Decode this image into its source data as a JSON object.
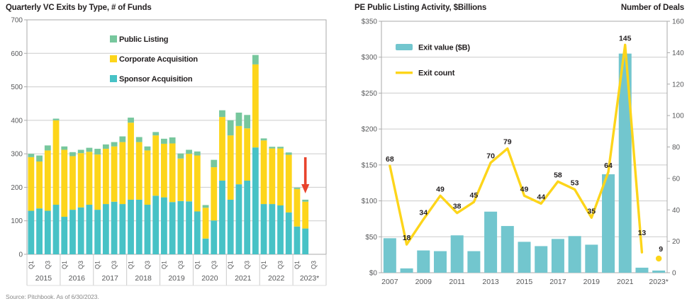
{
  "source": "Source: Pitchbook. As of 6/30/2023.",
  "colors": {
    "sponsor_teal": "#47c2c6",
    "corporate_yellow": "#fdd51a",
    "public_green": "#77c79d",
    "exit_value_teal": "#72c6ce",
    "exit_count_yellow": "#fdd51a",
    "arrow_red": "#e8432c",
    "grid": "#cccccc",
    "frame": "#aaaaaa",
    "axis_text": "#58595b",
    "label_text": "#231f20"
  },
  "chart_data": [
    {
      "type": "bar",
      "stacked": true,
      "title": "Quarterly VC Exits by Type, # of Funds",
      "ylim": [
        0,
        700
      ],
      "ytick_step": 100,
      "grid": true,
      "legend_position": "inside-top-left",
      "years": [
        "2015",
        "2016",
        "2017",
        "2018",
        "2019",
        "2020",
        "2021",
        "2022",
        "2023*"
      ],
      "quarters_per_year": [
        4,
        4,
        4,
        4,
        4,
        4,
        4,
        4,
        2
      ],
      "quarter_tick_labels": [
        "Q1",
        "Q3"
      ],
      "series": [
        {
          "name": "Sponsor Acquisition",
          "color_key": "sponsor_teal",
          "values": [
            130,
            137,
            130,
            148,
            112,
            133,
            140,
            148,
            133,
            150,
            157,
            150,
            163,
            163,
            148,
            175,
            170,
            156,
            159,
            158,
            128,
            47,
            101,
            220,
            163,
            209,
            220,
            319,
            150,
            150,
            146,
            125,
            83,
            77
          ]
        },
        {
          "name": "Corporate Acquisition",
          "color_key": "corporate_yellow",
          "values": [
            160,
            140,
            180,
            252,
            200,
            160,
            162,
            158,
            165,
            165,
            165,
            185,
            230,
            172,
            162,
            180,
            160,
            175,
            127,
            142,
            167,
            92,
            159,
            190,
            192,
            174,
            156,
            248,
            190,
            166,
            170,
            172,
            112,
            80
          ]
        },
        {
          "name": "Public Listing",
          "color_key": "public_green",
          "values": [
            10,
            18,
            15,
            5,
            10,
            12,
            10,
            12,
            17,
            13,
            13,
            17,
            15,
            15,
            12,
            10,
            15,
            18,
            15,
            12,
            12,
            8,
            22,
            20,
            45,
            40,
            40,
            28,
            6,
            5,
            5,
            7,
            4,
            6
          ]
        }
      ],
      "legend_items": [
        {
          "label": "Public Listing",
          "color_key": "public_green"
        },
        {
          "label": "Corporate Acquisition",
          "color_key": "corporate_yellow"
        },
        {
          "label": "Sponsor Acquisition",
          "color_key": "sponsor_teal"
        }
      ],
      "annotation": {
        "type": "down-arrow",
        "target_bar_index": 33,
        "color_key": "arrow_red"
      }
    },
    {
      "type": "bar+line",
      "title": "PE Public Listing Activity, $Billions",
      "right_axis_title": "Number of Deals",
      "x": [
        "2007",
        "2008",
        "2009",
        "2010",
        "2011",
        "2012",
        "2013",
        "2014",
        "2015",
        "2016",
        "2017",
        "2018",
        "2019",
        "2020",
        "2021",
        "2022",
        "2023*"
      ],
      "xtick_labels": [
        "2007",
        "2009",
        "2011",
        "2013",
        "2015",
        "2017",
        "2019",
        "2021",
        "2023*"
      ],
      "left_axis": {
        "lim": [
          0,
          350
        ],
        "tick_step": 50,
        "prefix": "$"
      },
      "right_axis": {
        "lim": [
          0,
          160
        ],
        "tick_step": 20
      },
      "grid": true,
      "series": [
        {
          "name": "Exit value ($B)",
          "type": "bar",
          "axis": "left",
          "color_key": "exit_value_teal",
          "values": [
            48,
            6,
            31,
            30,
            52,
            30,
            85,
            65,
            43,
            37,
            47,
            51,
            39,
            137,
            305,
            7,
            3
          ]
        },
        {
          "name": "Exit count",
          "type": "line",
          "axis": "right",
          "color_key": "exit_count_yellow",
          "values": [
            68,
            18,
            34,
            49,
            38,
            45,
            70,
            79,
            49,
            44,
            58,
            53,
            35,
            64,
            145,
            13,
            9
          ],
          "point_labels": [
            "68",
            "18",
            "34",
            "49",
            "38",
            "45",
            "70",
            "79",
            "49",
            "44",
            "58",
            "53",
            "35",
            "64",
            "145",
            "13",
            "9"
          ],
          "last_point_detached_dot": true
        }
      ],
      "legend_items": [
        {
          "label": "Exit value ($B)",
          "swatch": "bar",
          "color_key": "exit_value_teal"
        },
        {
          "label": "Exit count",
          "swatch": "line",
          "color_key": "exit_count_yellow"
        }
      ]
    }
  ]
}
